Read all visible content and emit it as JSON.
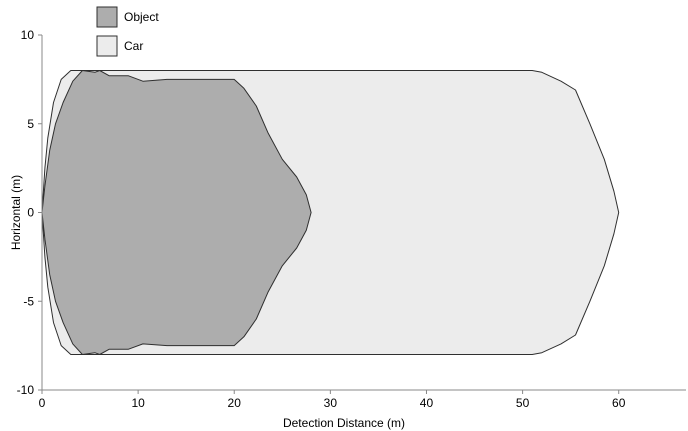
{
  "chart_data": {
    "type": "area",
    "title": "",
    "xlabel": "Detection Distance (m)",
    "ylabel": "Horizontal (m)",
    "xlim": [
      0,
      67
    ],
    "ylim": [
      -10,
      10
    ],
    "x_ticks": [
      0,
      10,
      20,
      30,
      40,
      50,
      60
    ],
    "y_ticks": [
      10,
      5,
      0,
      -5,
      -10
    ],
    "grid": false,
    "legend_position": "top-left",
    "series": [
      {
        "name": "Car",
        "fill": "#ececec",
        "stroke": "#2f2f2f",
        "points": [
          [
            0,
            0
          ],
          [
            0.3,
            2.5
          ],
          [
            0.6,
            4.2
          ],
          [
            1.2,
            6.2
          ],
          [
            2.0,
            7.5
          ],
          [
            3.0,
            8.0
          ],
          [
            5.0,
            8.0
          ],
          [
            51.0,
            8.0
          ],
          [
            52.0,
            7.9
          ],
          [
            54.0,
            7.4
          ],
          [
            55.5,
            6.9
          ],
          [
            57.0,
            5.0
          ],
          [
            58.5,
            3.0
          ],
          [
            59.5,
            1.2
          ],
          [
            60.0,
            0
          ],
          [
            59.5,
            -1.2
          ],
          [
            58.5,
            -3.0
          ],
          [
            57.0,
            -5.0
          ],
          [
            55.5,
            -6.9
          ],
          [
            54.0,
            -7.4
          ],
          [
            52.0,
            -7.9
          ],
          [
            51.0,
            -8.0
          ],
          [
            5.0,
            -8.0
          ],
          [
            3.0,
            -8.0
          ],
          [
            2.0,
            -7.5
          ],
          [
            1.2,
            -6.2
          ],
          [
            0.6,
            -4.2
          ],
          [
            0.3,
            -2.5
          ]
        ]
      },
      {
        "name": "Object",
        "fill": "#adadad",
        "stroke": "#2f2f2f",
        "points": [
          [
            0,
            0
          ],
          [
            0.3,
            1.5
          ],
          [
            0.8,
            3.5
          ],
          [
            1.4,
            5.0
          ],
          [
            2.2,
            6.2
          ],
          [
            3.2,
            7.4
          ],
          [
            4.2,
            8.0
          ],
          [
            5.5,
            7.9
          ],
          [
            6.0,
            8.0
          ],
          [
            7.0,
            7.7
          ],
          [
            9.0,
            7.7
          ],
          [
            10.5,
            7.4
          ],
          [
            13.0,
            7.5
          ],
          [
            20.0,
            7.5
          ],
          [
            21.0,
            7.0
          ],
          [
            22.3,
            6.0
          ],
          [
            23.5,
            4.5
          ],
          [
            25.0,
            3.0
          ],
          [
            26.5,
            2.0
          ],
          [
            27.5,
            1.0
          ],
          [
            28.0,
            0
          ],
          [
            27.5,
            -1.0
          ],
          [
            26.5,
            -2.0
          ],
          [
            25.0,
            -3.0
          ],
          [
            23.5,
            -4.5
          ],
          [
            22.3,
            -6.0
          ],
          [
            21.0,
            -7.0
          ],
          [
            20.0,
            -7.5
          ],
          [
            13.0,
            -7.5
          ],
          [
            10.5,
            -7.4
          ],
          [
            9.0,
            -7.7
          ],
          [
            7.0,
            -7.7
          ],
          [
            6.0,
            -8.0
          ],
          [
            5.5,
            -7.9
          ],
          [
            4.2,
            -8.0
          ],
          [
            3.2,
            -7.4
          ],
          [
            2.2,
            -6.2
          ],
          [
            1.4,
            -5.0
          ],
          [
            0.8,
            -3.5
          ],
          [
            0.3,
            -1.5
          ]
        ]
      }
    ],
    "legend": [
      {
        "label": "Object",
        "fill": "#adadad"
      },
      {
        "label": "Car",
        "fill": "#ececec"
      }
    ]
  }
}
